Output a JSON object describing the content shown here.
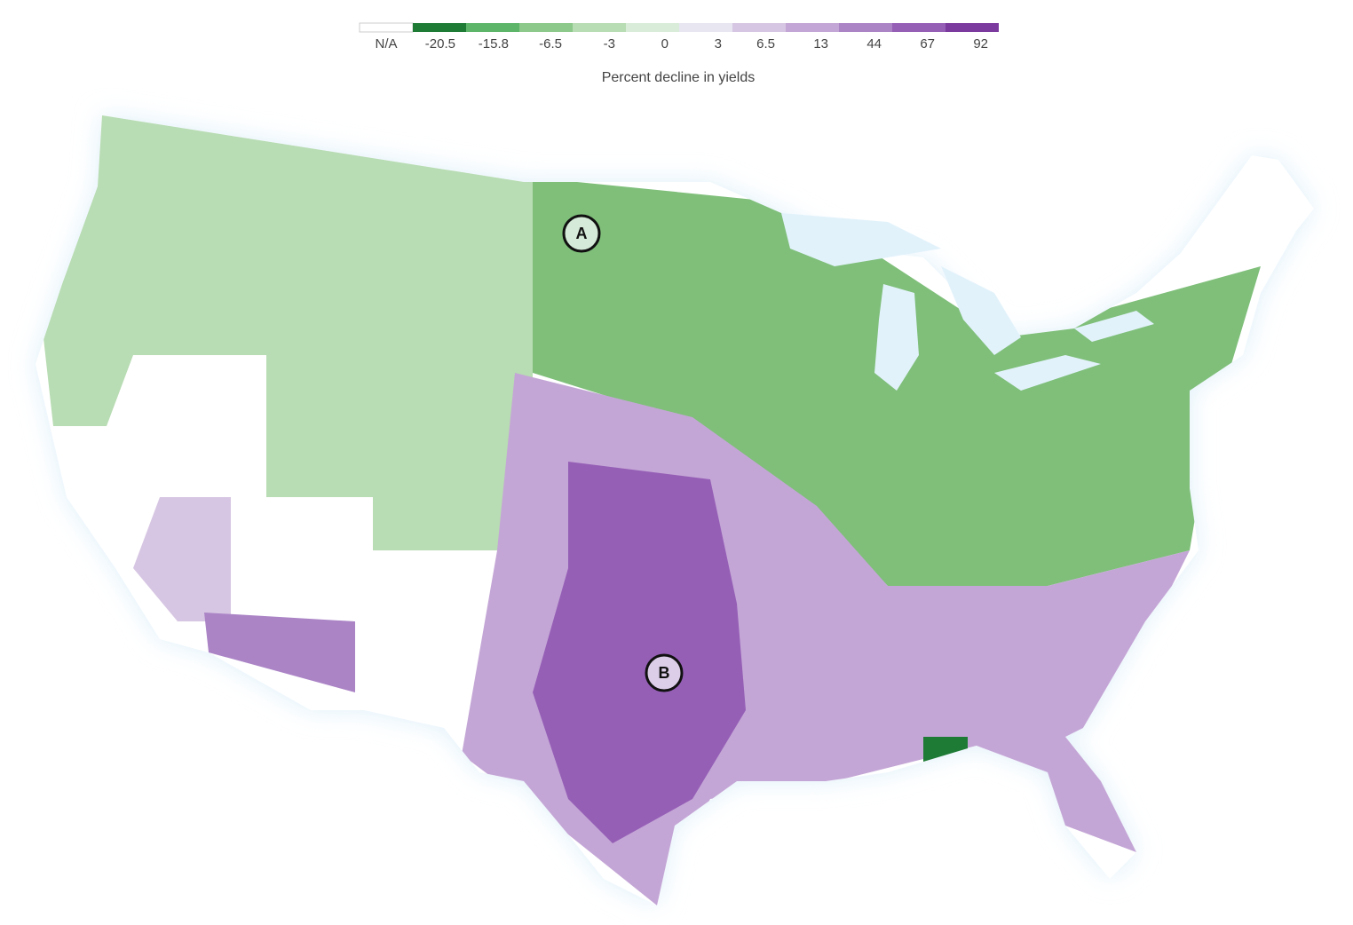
{
  "legend": {
    "title": "Percent decline in yields",
    "bins": [
      {
        "label": "N/A",
        "color": "#ffffff"
      },
      {
        "label": "-20.5",
        "color": "#1e7b36"
      },
      {
        "label": "-15.8",
        "color": "#5db56a"
      },
      {
        "label": "-6.5",
        "color": "#8cc98a"
      },
      {
        "label": "-3",
        "color": "#b8dcb3"
      },
      {
        "label": "0",
        "color": "#d9ecda"
      },
      {
        "label": "3",
        "color": "#e7e6f1"
      },
      {
        "label": "6.5",
        "color": "#d7c6e3"
      },
      {
        "label": "13",
        "color": "#c4a6d6"
      },
      {
        "label": "44",
        "color": "#ab84c6"
      },
      {
        "label": "67",
        "color": "#955fb6"
      },
      {
        "label": "92",
        "color": "#7b3a9e"
      }
    ]
  },
  "annotations": [
    {
      "label": "A",
      "color": "#d5ead8"
    },
    {
      "label": "B",
      "color": "#dccde8"
    }
  ]
}
